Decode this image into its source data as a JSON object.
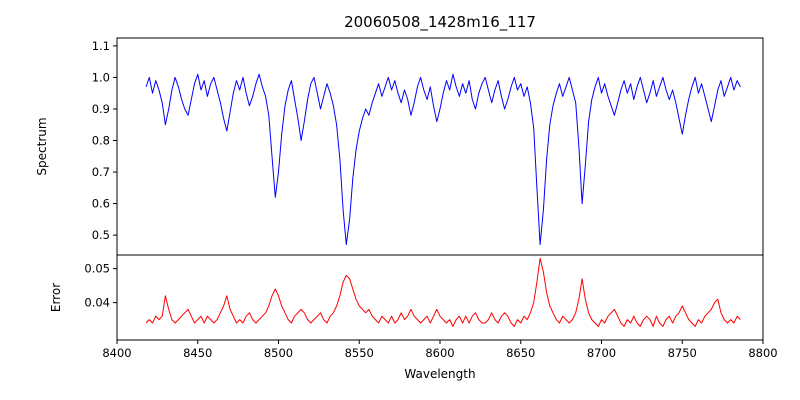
{
  "figure": {
    "background": "#ffffff",
    "frame_color": "#000000"
  },
  "chart_data": {
    "type": "line",
    "title": "20060508_1428m16_117",
    "xlabel": "Wavelength",
    "xlim": [
      8400,
      8800
    ],
    "xticks": [
      8400,
      8450,
      8500,
      8550,
      8600,
      8650,
      8700,
      8750,
      8800
    ],
    "grid": false,
    "legend": false,
    "x": [
      8418,
      8420,
      8422,
      8424,
      8426,
      8428,
      8430,
      8432,
      8434,
      8436,
      8438,
      8440,
      8442,
      8444,
      8446,
      8448,
      8450,
      8452,
      8454,
      8456,
      8458,
      8460,
      8462,
      8464,
      8466,
      8468,
      8470,
      8472,
      8474,
      8476,
      8478,
      8480,
      8482,
      8484,
      8486,
      8488,
      8490,
      8492,
      8494,
      8496,
      8498,
      8500,
      8502,
      8504,
      8506,
      8508,
      8510,
      8512,
      8514,
      8516,
      8518,
      8520,
      8522,
      8524,
      8526,
      8528,
      8530,
      8532,
      8534,
      8536,
      8538,
      8540,
      8542,
      8544,
      8546,
      8548,
      8550,
      8552,
      8554,
      8556,
      8558,
      8560,
      8562,
      8564,
      8566,
      8568,
      8570,
      8572,
      8574,
      8576,
      8578,
      8580,
      8582,
      8584,
      8586,
      8588,
      8590,
      8592,
      8594,
      8596,
      8598,
      8600,
      8602,
      8604,
      8606,
      8608,
      8610,
      8612,
      8614,
      8616,
      8618,
      8620,
      8622,
      8624,
      8626,
      8628,
      8630,
      8632,
      8634,
      8636,
      8638,
      8640,
      8642,
      8644,
      8646,
      8648,
      8650,
      8652,
      8654,
      8656,
      8658,
      8660,
      8662,
      8664,
      8666,
      8668,
      8670,
      8672,
      8674,
      8676,
      8678,
      8680,
      8682,
      8684,
      8686,
      8688,
      8690,
      8692,
      8694,
      8696,
      8698,
      8700,
      8702,
      8704,
      8706,
      8708,
      8710,
      8712,
      8714,
      8716,
      8718,
      8720,
      8722,
      8724,
      8726,
      8728,
      8730,
      8732,
      8734,
      8736,
      8738,
      8740,
      8742,
      8744,
      8746,
      8748,
      8750,
      8752,
      8754,
      8756,
      8758,
      8760,
      8762,
      8764,
      8766,
      8768,
      8770,
      8772,
      8774,
      8776,
      8778,
      8780,
      8782,
      8784,
      8786
    ],
    "panels": [
      {
        "ylabel": "Spectrum",
        "ylim": [
          0.437,
          1.125
        ],
        "yticks": [
          0.5,
          0.6,
          0.7,
          0.8,
          0.9,
          1.0,
          1.1
        ],
        "ytick_labels": [
          "0.5",
          "0.6",
          "0.7",
          "0.8",
          "0.9",
          "1.0",
          "1.1"
        ],
        "series": [
          {
            "name": "spectrum",
            "color": "#0000ff",
            "y": [
              0.97,
              1.0,
              0.95,
              0.99,
              0.96,
              0.92,
              0.85,
              0.9,
              0.96,
              1.0,
              0.97,
              0.93,
              0.9,
              0.88,
              0.93,
              0.98,
              1.01,
              0.96,
              0.99,
              0.94,
              0.98,
              1.0,
              0.96,
              0.92,
              0.87,
              0.83,
              0.89,
              0.95,
              0.99,
              0.96,
              1.0,
              0.95,
              0.91,
              0.94,
              0.98,
              1.01,
              0.97,
              0.94,
              0.88,
              0.75,
              0.62,
              0.7,
              0.82,
              0.91,
              0.96,
              0.99,
              0.93,
              0.87,
              0.8,
              0.86,
              0.93,
              0.98,
              1.0,
              0.95,
              0.9,
              0.94,
              0.98,
              0.95,
              0.91,
              0.85,
              0.74,
              0.58,
              0.47,
              0.55,
              0.68,
              0.77,
              0.83,
              0.87,
              0.9,
              0.88,
              0.92,
              0.95,
              0.98,
              0.94,
              0.97,
              1.0,
              0.96,
              0.99,
              0.95,
              0.92,
              0.96,
              0.93,
              0.88,
              0.92,
              0.97,
              1.0,
              0.96,
              0.93,
              0.97,
              0.91,
              0.86,
              0.9,
              0.95,
              0.99,
              0.96,
              1.01,
              0.97,
              0.94,
              0.98,
              0.95,
              0.99,
              0.93,
              0.9,
              0.95,
              0.98,
              1.0,
              0.96,
              0.92,
              0.96,
              0.99,
              0.94,
              0.9,
              0.93,
              0.97,
              1.0,
              0.96,
              0.98,
              0.94,
              0.97,
              0.92,
              0.84,
              0.65,
              0.47,
              0.58,
              0.74,
              0.85,
              0.91,
              0.95,
              0.98,
              0.94,
              0.97,
              1.0,
              0.96,
              0.92,
              0.78,
              0.6,
              0.72,
              0.86,
              0.93,
              0.97,
              1.0,
              0.95,
              0.98,
              0.94,
              0.91,
              0.88,
              0.92,
              0.96,
              0.99,
              0.95,
              0.98,
              0.93,
              0.97,
              1.0,
              0.96,
              0.92,
              0.95,
              0.99,
              0.94,
              0.97,
              1.0,
              0.96,
              0.93,
              0.96,
              0.92,
              0.87,
              0.82,
              0.88,
              0.93,
              0.97,
              1.0,
              0.95,
              0.98,
              0.94,
              0.9,
              0.86,
              0.91,
              0.96,
              0.99,
              0.94,
              0.97,
              1.0,
              0.96,
              0.99,
              0.97
            ]
          }
        ]
      },
      {
        "ylabel": "Error",
        "ylim": [
          0.029,
          0.054
        ],
        "yticks": [
          0.04,
          0.05
        ],
        "ytick_labels": [
          "0.04",
          "0.05"
        ],
        "series": [
          {
            "name": "error",
            "color": "#ff0000",
            "y": [
              0.034,
              0.035,
              0.034,
              0.036,
              0.035,
              0.036,
              0.042,
              0.038,
              0.035,
              0.034,
              0.035,
              0.036,
              0.037,
              0.038,
              0.036,
              0.034,
              0.035,
              0.036,
              0.034,
              0.036,
              0.035,
              0.034,
              0.035,
              0.037,
              0.039,
              0.042,
              0.038,
              0.036,
              0.034,
              0.035,
              0.034,
              0.036,
              0.037,
              0.035,
              0.034,
              0.035,
              0.036,
              0.037,
              0.039,
              0.042,
              0.044,
              0.042,
              0.039,
              0.037,
              0.035,
              0.034,
              0.036,
              0.037,
              0.038,
              0.037,
              0.035,
              0.034,
              0.035,
              0.036,
              0.037,
              0.035,
              0.034,
              0.036,
              0.037,
              0.039,
              0.042,
              0.046,
              0.048,
              0.047,
              0.044,
              0.041,
              0.039,
              0.038,
              0.037,
              0.038,
              0.036,
              0.035,
              0.034,
              0.036,
              0.035,
              0.034,
              0.036,
              0.034,
              0.035,
              0.037,
              0.035,
              0.036,
              0.038,
              0.036,
              0.035,
              0.034,
              0.035,
              0.036,
              0.034,
              0.036,
              0.038,
              0.036,
              0.035,
              0.034,
              0.035,
              0.033,
              0.035,
              0.036,
              0.034,
              0.036,
              0.034,
              0.036,
              0.037,
              0.035,
              0.034,
              0.034,
              0.035,
              0.037,
              0.035,
              0.034,
              0.036,
              0.037,
              0.036,
              0.034,
              0.033,
              0.035,
              0.034,
              0.036,
              0.035,
              0.037,
              0.04,
              0.046,
              0.053,
              0.049,
              0.043,
              0.039,
              0.037,
              0.035,
              0.034,
              0.036,
              0.035,
              0.034,
              0.035,
              0.037,
              0.041,
              0.047,
              0.041,
              0.037,
              0.035,
              0.034,
              0.033,
              0.035,
              0.034,
              0.036,
              0.037,
              0.038,
              0.036,
              0.034,
              0.033,
              0.035,
              0.034,
              0.036,
              0.034,
              0.033,
              0.035,
              0.036,
              0.035,
              0.033,
              0.036,
              0.034,
              0.033,
              0.035,
              0.036,
              0.034,
              0.036,
              0.037,
              0.039,
              0.037,
              0.035,
              0.034,
              0.033,
              0.035,
              0.034,
              0.036,
              0.037,
              0.038,
              0.04,
              0.041,
              0.037,
              0.035,
              0.034,
              0.035,
              0.034,
              0.036,
              0.035
            ]
          }
        ]
      }
    ]
  }
}
